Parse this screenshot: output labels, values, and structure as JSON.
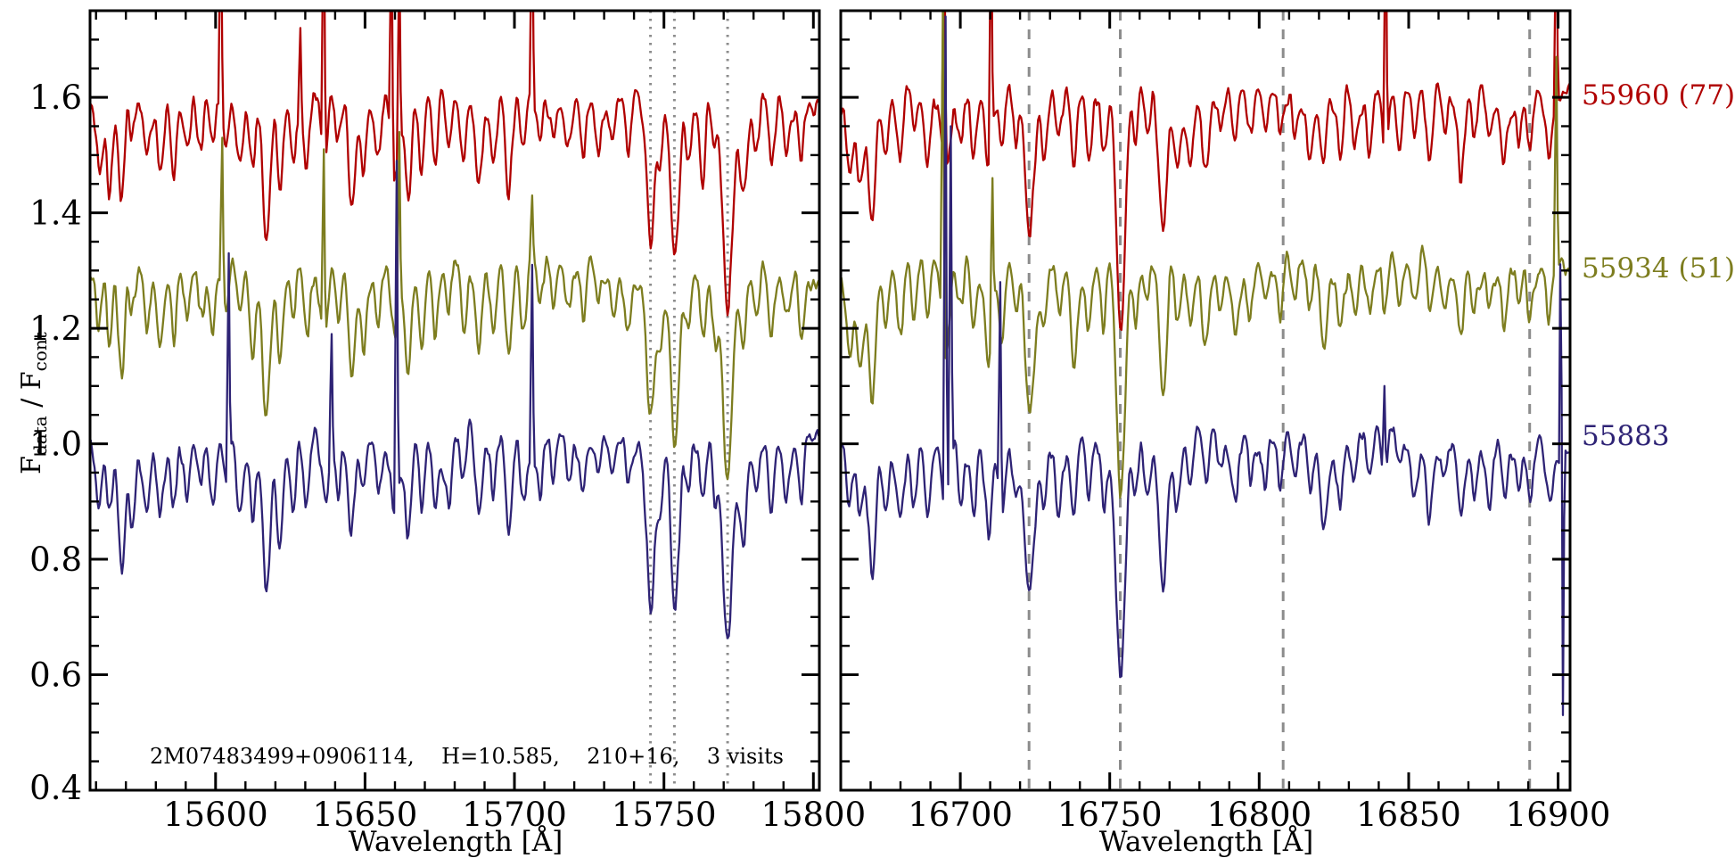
{
  "labels": {
    "annotation": "2M07483499+0906114,    H=10.585,    210+16,    3 visits",
    "y_F1": "F",
    "y_sub_data": "data",
    "y_slash": " / ",
    "y_F2": "F",
    "y_sub_cont": "cont"
  },
  "chart_data": {
    "type": "line",
    "title": "",
    "xlabel": "Wavelength [Å]",
    "ylabel": "F_data / F_cont",
    "ylim": [
      0.4,
      1.75
    ],
    "yticks": [
      0.4,
      0.6,
      0.8,
      1.0,
      1.2,
      1.4,
      1.6
    ],
    "ytick_minor_step": 0.05,
    "xtick_minor_step": 10,
    "grid": false,
    "marker_color": "#8c8c8c",
    "legend_position": "right-outside",
    "series": [
      {
        "name": "55883",
        "label": "55883",
        "color": "#2e2375",
        "offset": 0.0,
        "label_y": 1.01,
        "seed": 21
      },
      {
        "name": "55934",
        "label": "55934 (51)",
        "color": "#7d7d1f",
        "offset": 0.3,
        "label_y": 1.3,
        "seed": 11
      },
      {
        "name": "55960",
        "label": "55960 (77)",
        "color": "#b00000",
        "offset": 0.6,
        "label_y": 1.6,
        "seed": 3
      }
    ],
    "draw_order": [
      "55960",
      "55934",
      "55883"
    ],
    "panels": [
      {
        "xlim": [
          15558,
          15802
        ],
        "xticks": [
          15600,
          15650,
          15700,
          15750,
          15800
        ],
        "marker_lines": [
          15745.5,
          15753.5,
          15771.3
        ],
        "marker_dash": "2.5 6.5",
        "absorption_lines": [
          [
            15561,
            0.11,
            1.1
          ],
          [
            15564.5,
            0.13,
            0.9
          ],
          [
            15568.5,
            0.19,
            1.0
          ],
          [
            15572,
            0.09,
            0.9
          ],
          [
            15577,
            0.11,
            1.0
          ],
          [
            15581.5,
            0.13,
            1.1
          ],
          [
            15586,
            0.11,
            0.9
          ],
          [
            15590.5,
            0.08,
            0.9
          ],
          [
            15595,
            0.07,
            0.9
          ],
          [
            15599,
            0.09,
            0.9
          ],
          [
            15603.5,
            0.09,
            0.9
          ],
          [
            15608,
            0.11,
            1.0
          ],
          [
            15612.5,
            0.12,
            0.9
          ],
          [
            15617,
            0.25,
            1.2
          ],
          [
            15621.5,
            0.17,
            1.0
          ],
          [
            15626,
            0.11,
            0.9
          ],
          [
            15630.5,
            0.12,
            0.9
          ],
          [
            15636.5,
            0.11,
            1.1
          ],
          [
            15641,
            0.09,
            0.9
          ],
          [
            15645.5,
            0.18,
            1.1
          ],
          [
            15649.5,
            0.11,
            0.9
          ],
          [
            15654.5,
            0.09,
            0.9
          ],
          [
            15660,
            0.13,
            1.3
          ],
          [
            15664.5,
            0.15,
            1.0
          ],
          [
            15669,
            0.12,
            0.9
          ],
          [
            15673.5,
            0.12,
            0.9
          ],
          [
            15678,
            0.09,
            0.9
          ],
          [
            15683,
            0.1,
            0.9
          ],
          [
            15688,
            0.14,
            1.1
          ],
          [
            15693,
            0.1,
            0.9
          ],
          [
            15698,
            0.16,
            1.0
          ],
          [
            15703,
            0.1,
            0.9
          ],
          [
            15708.5,
            0.08,
            0.9
          ],
          [
            15713,
            0.07,
            0.9
          ],
          [
            15718,
            0.06,
            0.9
          ],
          [
            15723,
            0.09,
            0.9
          ],
          [
            15728,
            0.07,
            0.9
          ],
          [
            15733,
            0.06,
            0.9
          ],
          [
            15738,
            0.09,
            0.9
          ],
          [
            15745.6,
            0.26,
            1.4
          ],
          [
            15749,
            0.12,
            0.9
          ],
          [
            15753.6,
            0.31,
            1.4
          ],
          [
            15758,
            0.09,
            0.9
          ],
          [
            15763,
            0.11,
            0.9
          ],
          [
            15767,
            0.1,
            0.9
          ],
          [
            15771.3,
            0.36,
            1.6
          ],
          [
            15776.5,
            0.16,
            1.1
          ],
          [
            15781,
            0.09,
            0.9
          ],
          [
            15786,
            0.11,
            1.0
          ],
          [
            15791,
            0.08,
            0.9
          ],
          [
            15796,
            0.1,
            0.9
          ]
        ],
        "spikes": {
          "55960": [
            [
              15601.5,
              1.97
            ],
            [
              15628,
              1.72
            ],
            [
              15635.8,
              1.99
            ],
            [
              15658.8,
              1.93
            ],
            [
              15661.2,
              1.86
            ],
            [
              15705.8,
              1.97
            ]
          ],
          "55934": [
            [
              15602,
              1.53
            ],
            [
              15635.8,
              1.51
            ],
            [
              15661.2,
              1.54
            ],
            [
              15705.8,
              1.43
            ]
          ],
          "55883": [
            [
              15604,
              1.33
            ],
            [
              15638.5,
              1.19
            ],
            [
              15660.2,
              1.49
            ],
            [
              15705.8,
              1.31
            ]
          ]
        }
      },
      {
        "xlim": [
          16660,
          16904
        ],
        "xticks": [
          16700,
          16750,
          16800,
          16850,
          16900
        ],
        "marker_lines": [
          16723,
          16753.5,
          16808,
          16890.5
        ],
        "marker_dash": "11 10",
        "absorption_lines": [
          [
            16663,
            0.12,
            1.0
          ],
          [
            16666.5,
            0.15,
            1.1
          ],
          [
            16670.5,
            0.21,
            1.2
          ],
          [
            16675,
            0.11,
            0.9
          ],
          [
            16680,
            0.13,
            1.0
          ],
          [
            16684.5,
            0.09,
            0.9
          ],
          [
            16689,
            0.11,
            0.9
          ],
          [
            16695,
            0.13,
            1.2
          ],
          [
            16700,
            0.09,
            0.9
          ],
          [
            16704.5,
            0.11,
            0.9
          ],
          [
            16709.5,
            0.13,
            1.0
          ],
          [
            16714,
            0.11,
            0.9
          ],
          [
            16718.5,
            0.09,
            0.9
          ],
          [
            16723.2,
            0.25,
            1.5
          ],
          [
            16728,
            0.09,
            0.9
          ],
          [
            16733,
            0.08,
            0.9
          ],
          [
            16738,
            0.13,
            1.0
          ],
          [
            16743,
            0.09,
            0.9
          ],
          [
            16748,
            0.11,
            0.9
          ],
          [
            16753.7,
            0.41,
            1.5
          ],
          [
            16758.5,
            0.11,
            0.9
          ],
          [
            16762.5,
            0.09,
            0.9
          ],
          [
            16767.8,
            0.23,
            1.3
          ],
          [
            16772.5,
            0.11,
            0.9
          ],
          [
            16777,
            0.08,
            0.9
          ],
          [
            16782,
            0.11,
            1.0
          ],
          [
            16787,
            0.07,
            0.9
          ],
          [
            16792,
            0.09,
            0.9
          ],
          [
            16797,
            0.08,
            0.9
          ],
          [
            16802,
            0.07,
            0.9
          ],
          [
            16807,
            0.08,
            0.9
          ],
          [
            16812,
            0.07,
            0.9
          ],
          [
            16817,
            0.09,
            0.9
          ],
          [
            16821.5,
            0.12,
            1.0
          ],
          [
            16827,
            0.1,
            0.9
          ],
          [
            16832,
            0.07,
            0.9
          ],
          [
            16837,
            0.08,
            0.9
          ],
          [
            16842,
            0.09,
            0.9
          ],
          [
            16847,
            0.07,
            0.9
          ],
          [
            16852,
            0.08,
            0.9
          ],
          [
            16857,
            0.1,
            1.0
          ],
          [
            16862,
            0.07,
            0.9
          ],
          [
            16867.5,
            0.12,
            1.0
          ],
          [
            16872,
            0.07,
            0.9
          ],
          [
            16877,
            0.08,
            0.9
          ],
          [
            16882,
            0.09,
            0.9
          ],
          [
            16887,
            0.07,
            0.9
          ],
          [
            16890.5,
            0.1,
            0.9
          ],
          [
            16897,
            0.09,
            0.9
          ]
        ],
        "spikes": {
          "55960": [
            [
              16694.5,
              1.95
            ],
            [
              16710,
              1.97
            ],
            [
              16842,
              1.96
            ],
            [
              16899.4,
              1.94
            ]
          ],
          "55934": [
            [
              16694.2,
              1.79
            ],
            [
              16710.5,
              1.46
            ],
            [
              16899,
              1.67
            ]
          ],
          "55883": [
            [
              16694.8,
              1.74
            ],
            [
              16696.8,
              1.55
            ],
            [
              16713,
              1.28
            ],
            [
              16841.5,
              1.1
            ],
            [
              16900.8,
              1.66
            ],
            [
              16901.6,
              0.53
            ]
          ]
        }
      }
    ]
  }
}
